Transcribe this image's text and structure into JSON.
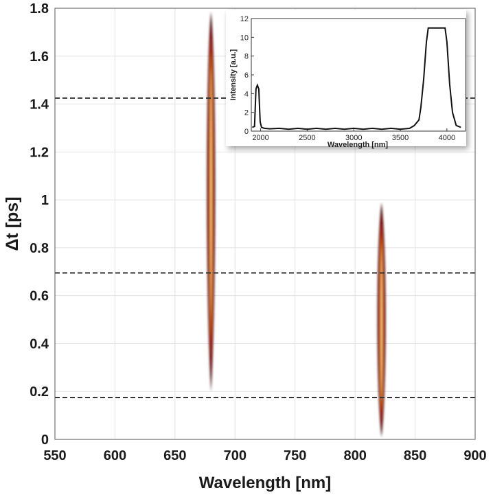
{
  "chart_data": [
    {
      "type": "heatmap",
      "xlabel": "Wavelength [nm]",
      "ylabel": "Δt  [ps]",
      "xlim": [
        550,
        900
      ],
      "ylim": [
        0,
        1.8
      ],
      "xticks": [
        550,
        600,
        650,
        700,
        750,
        800,
        850,
        900
      ],
      "yticks": [
        0,
        0.2,
        0.4,
        0.6,
        0.8,
        1,
        1.2,
        1.4,
        1.6,
        1.8
      ],
      "ytick_labels": [
        "0",
        "0.2",
        "0.4",
        "0.6",
        "0.8",
        "1",
        "1.2",
        "1.4",
        "1.6",
        "1.8"
      ],
      "grid": true,
      "colormap": "hot",
      "hot_colors": [
        "#3a0000",
        "#8b0a0a",
        "#c8351a",
        "#f08a1e",
        "#fff2a0"
      ],
      "gate_lines_ps": [
        1.425,
        0.695,
        0.175
      ],
      "features": [
        {
          "wavelength_nm": 680,
          "width_nm": 4.5,
          "t_start_ps": 0.18,
          "t_end_ps": 1.8,
          "peak_t_ps": 1.1
        },
        {
          "wavelength_nm": 822,
          "width_nm": 4.5,
          "t_start_ps": 0.0,
          "t_end_ps": 1.0,
          "peak_t_ps": 0.45
        }
      ]
    },
    {
      "type": "line",
      "xlabel": "Wavelength [nm]",
      "ylabel": "Intensity [a.u.]",
      "xlim": [
        1900,
        4200
      ],
      "ylim": [
        0,
        12
      ],
      "xticks": [
        2000,
        2500,
        3000,
        3500,
        4000
      ],
      "yticks": [
        0,
        2,
        4,
        6,
        8,
        10,
        12
      ],
      "series": [
        {
          "x": [
            1910,
            1935,
            1950,
            1965,
            1980,
            1995,
            2010,
            2040,
            2100,
            2200,
            2300,
            2400,
            2500,
            2600,
            2700,
            2800,
            2900,
            3000,
            3100,
            3200,
            3300,
            3400,
            3500,
            3600,
            3650,
            3700,
            3720,
            3750,
            3780,
            3800,
            3850,
            3900,
            3950,
            3980,
            4000,
            4030,
            4060,
            4100,
            4150
          ],
          "y": [
            0.4,
            0.5,
            4.5,
            4.9,
            4.5,
            1.0,
            0.4,
            0.3,
            0.25,
            0.3,
            0.2,
            0.3,
            0.2,
            0.3,
            0.2,
            0.3,
            0.2,
            0.3,
            0.2,
            0.3,
            0.2,
            0.3,
            0.2,
            0.3,
            0.6,
            1.2,
            2.5,
            5.5,
            9.5,
            11.0,
            11.0,
            11.0,
            11.0,
            11.0,
            9.5,
            5.0,
            2.0,
            0.6,
            0.4
          ]
        }
      ]
    }
  ]
}
